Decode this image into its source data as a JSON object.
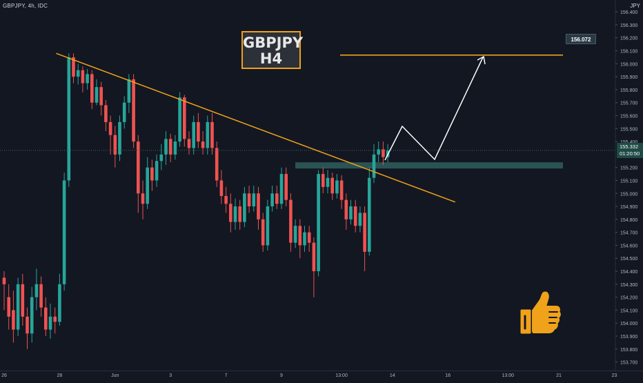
{
  "header": {
    "symbol_line": "GBPJPY, 4h, IDC",
    "currency": "JPY"
  },
  "annotation": {
    "title_line1": "GBPJPY",
    "title_line2": "H4",
    "target_label": "156.072",
    "current_price": "155.332",
    "countdown": "01:20:50"
  },
  "colors": {
    "background": "#131722",
    "bull": "#26a69a",
    "bear": "#ef5350",
    "trendline": "#f0a21a",
    "zone": "#2e5a5a",
    "projection": "#ffffff",
    "thumb_icon": "#f0a21a"
  },
  "icons": [
    "thumbs-up-icon",
    "arrow-up-right-icon"
  ],
  "chart_data": {
    "type": "candlestick",
    "timeframe": "4h",
    "y_ticks": [
      "156.400",
      "156.300",
      "156.200",
      "156.100",
      "156.000",
      "155.900",
      "155.800",
      "155.700",
      "155.600",
      "155.500",
      "155.400",
      "155.200",
      "155.100",
      "155.000",
      "154.900",
      "154.800",
      "154.700",
      "154.600",
      "154.500",
      "154.400",
      "154.300",
      "154.200",
      "154.100",
      "154.000",
      "153.900",
      "153.800",
      "153.700"
    ],
    "x_ticks": [
      {
        "label": "26",
        "t": 0
      },
      {
        "label": "28",
        "t": 12
      },
      {
        "label": "Jun",
        "t": 24
      },
      {
        "label": "3",
        "t": 36
      },
      {
        "label": "7",
        "t": 48
      },
      {
        "label": "9",
        "t": 60
      },
      {
        "label": "13:00",
        "t": 73
      },
      {
        "label": "14",
        "t": 84
      },
      {
        "label": "16",
        "t": 96
      },
      {
        "label": "13:00",
        "t": 109
      },
      {
        "label": "21",
        "t": 120
      },
      {
        "label": "23",
        "t": 132
      },
      {
        "label": "13:00",
        "t": 145
      }
    ],
    "ylim": [
      153.65,
      156.47
    ],
    "candles": [
      [
        154.35,
        154.3,
        154.1,
        154.4
      ],
      [
        154.2,
        154.05,
        153.95,
        154.3
      ],
      [
        154.1,
        153.95,
        153.85,
        154.25
      ],
      [
        153.95,
        154.3,
        153.9,
        154.35
      ],
      [
        154.3,
        154.05,
        153.98,
        154.38
      ],
      [
        154.05,
        153.92,
        153.8,
        154.12
      ],
      [
        153.92,
        154.2,
        153.85,
        154.28
      ],
      [
        154.2,
        154.3,
        154.1,
        154.42
      ],
      [
        154.3,
        154.12,
        154.05,
        154.36
      ],
      [
        154.12,
        153.95,
        153.9,
        154.2
      ],
      [
        153.95,
        154.05,
        153.88,
        154.15
      ],
      [
        154.05,
        154.01,
        153.92,
        154.12
      ],
      [
        154.01,
        154.3,
        153.98,
        154.38
      ],
      [
        154.3,
        155.1,
        154.25,
        155.16
      ],
      [
        155.1,
        156.05,
        155.05,
        156.08
      ],
      [
        156.05,
        155.9,
        155.85,
        156.08
      ],
      [
        155.9,
        155.95,
        155.84,
        156.0
      ],
      [
        155.95,
        155.85,
        155.78,
        155.98
      ],
      [
        155.85,
        155.92,
        155.8,
        155.96
      ],
      [
        155.92,
        155.7,
        155.65,
        155.95
      ],
      [
        155.7,
        155.82,
        155.68,
        155.88
      ],
      [
        155.82,
        155.68,
        155.6,
        155.86
      ],
      [
        155.68,
        155.55,
        155.48,
        155.72
      ],
      [
        155.55,
        155.45,
        155.3,
        155.6
      ],
      [
        155.45,
        155.3,
        155.2,
        155.52
      ],
      [
        155.3,
        155.55,
        155.25,
        155.6
      ],
      [
        155.55,
        155.7,
        155.5,
        155.75
      ],
      [
        155.7,
        155.88,
        155.62,
        155.92
      ],
      [
        155.88,
        155.4,
        155.35,
        155.92
      ],
      [
        155.4,
        155.0,
        154.85,
        155.45
      ],
      [
        155.0,
        154.92,
        154.8,
        155.1
      ],
      [
        154.92,
        155.2,
        154.88,
        155.28
      ],
      [
        155.2,
        155.1,
        155.02,
        155.26
      ],
      [
        155.1,
        155.25,
        155.05,
        155.3
      ],
      [
        155.25,
        155.3,
        155.18,
        155.38
      ],
      [
        155.3,
        155.42,
        155.22,
        155.48
      ],
      [
        155.42,
        155.3,
        155.24,
        155.46
      ],
      [
        155.3,
        155.4,
        155.26,
        155.45
      ],
      [
        155.4,
        155.74,
        155.36,
        155.78
      ],
      [
        155.74,
        155.42,
        155.36,
        155.76
      ],
      [
        155.42,
        155.35,
        155.3,
        155.48
      ],
      [
        155.35,
        155.55,
        155.3,
        155.6
      ],
      [
        155.55,
        155.4,
        155.35,
        155.62
      ],
      [
        155.4,
        155.35,
        155.3,
        155.48
      ],
      [
        155.35,
        155.55,
        155.3,
        155.6
      ],
      [
        155.55,
        155.35,
        155.3,
        155.62
      ],
      [
        155.35,
        155.1,
        155.05,
        155.4
      ],
      [
        155.1,
        154.98,
        154.92,
        155.18
      ],
      [
        154.98,
        154.92,
        154.85,
        155.05
      ],
      [
        154.92,
        154.78,
        154.7,
        155.0
      ],
      [
        154.78,
        154.9,
        154.72,
        154.96
      ],
      [
        154.9,
        154.78,
        154.72,
        154.95
      ],
      [
        154.78,
        155.0,
        154.74,
        155.05
      ],
      [
        155.0,
        154.9,
        154.85,
        155.06
      ],
      [
        154.9,
        155.0,
        154.86,
        155.06
      ],
      [
        155.0,
        154.8,
        154.72,
        155.05
      ],
      [
        154.8,
        154.6,
        154.55,
        154.85
      ],
      [
        154.6,
        154.9,
        154.56,
        154.95
      ],
      [
        154.9,
        155.0,
        154.86,
        155.06
      ],
      [
        155.0,
        154.92,
        154.88,
        155.06
      ],
      [
        154.92,
        155.15,
        154.88,
        155.2
      ],
      [
        155.15,
        154.95,
        154.9,
        155.2
      ],
      [
        154.95,
        154.62,
        154.55,
        155.0
      ],
      [
        154.62,
        154.75,
        154.58,
        154.8
      ],
      [
        154.75,
        154.6,
        154.5,
        154.8
      ],
      [
        154.6,
        154.7,
        154.55,
        154.75
      ],
      [
        154.7,
        154.62,
        154.55,
        154.75
      ],
      [
        154.62,
        154.4,
        154.2,
        154.66
      ],
      [
        154.4,
        155.15,
        154.36,
        155.18
      ],
      [
        155.15,
        155.05,
        155.0,
        155.2
      ],
      [
        155.05,
        155.12,
        155.0,
        155.18
      ],
      [
        155.12,
        155.0,
        154.95,
        155.16
      ],
      [
        155.0,
        155.1,
        154.96,
        155.15
      ],
      [
        155.1,
        154.95,
        154.88,
        155.14
      ],
      [
        154.95,
        154.8,
        154.72,
        155.0
      ],
      [
        154.8,
        154.9,
        154.76,
        154.95
      ],
      [
        154.9,
        154.75,
        154.7,
        154.95
      ],
      [
        154.75,
        154.85,
        154.7,
        154.9
      ],
      [
        154.85,
        154.55,
        154.4,
        154.9
      ],
      [
        154.55,
        155.12,
        154.52,
        155.2
      ],
      [
        155.12,
        155.3,
        155.08,
        155.38
      ],
      [
        155.3,
        155.34,
        155.24,
        155.4
      ],
      [
        155.34,
        155.28,
        155.22,
        155.4
      ],
      [
        155.28,
        155.33,
        155.24,
        155.38
      ]
    ],
    "trendline": [
      [
        12,
        156.08
      ],
      [
        94,
        154.96
      ]
    ],
    "support_zone": [
      154.88,
      155.24
    ],
    "target_line": 156.072,
    "target_line_t": [
      72,
      136
    ],
    "projection": [
      [
        84,
        155.25
      ],
      [
        89,
        155.5
      ],
      [
        95,
        155.25
      ],
      [
        110,
        155.98
      ]
    ]
  }
}
